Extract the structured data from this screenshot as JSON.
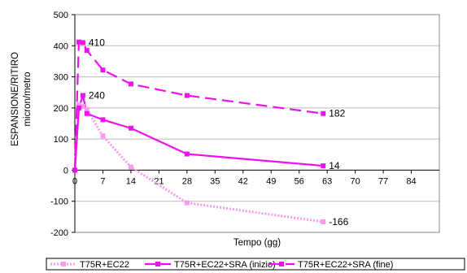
{
  "chart_data": {
    "type": "line",
    "title": "",
    "xlabel": "Tempo (gg)",
    "ylabel": "ESPANSIONE/RITIRO",
    "ylabel_unit": "micron/metro",
    "xlim": [
      0,
      91
    ],
    "ylim": [
      -200,
      500
    ],
    "x_ticks": [
      0,
      7,
      14,
      21,
      28,
      35,
      42,
      49,
      56,
      63,
      70,
      77,
      84
    ],
    "y_ticks": [
      -200,
      -100,
      0,
      100,
      200,
      300,
      400,
      500
    ],
    "grid": "horizontal",
    "legend_position": "bottom",
    "series": [
      {
        "name": "T75R+EC22",
        "color": "#ff99ee",
        "line_style": "dotted",
        "x": [
          0,
          1,
          2,
          3,
          7,
          14,
          28,
          62
        ],
        "y": [
          0,
          210,
          205,
          195,
          110,
          10,
          -105,
          -166
        ]
      },
      {
        "name": "T75R+EC22+SRA (inizio)",
        "color": "#ee11ee",
        "line_style": "solid",
        "x": [
          0,
          1,
          2,
          3,
          7,
          14,
          28,
          62
        ],
        "y": [
          0,
          200,
          240,
          182,
          162,
          135,
          52,
          14
        ]
      },
      {
        "name": "T75R+EC22+SRA (fine)",
        "color": "#ee11ee",
        "line_style": "dashed",
        "x": [
          0,
          1,
          2,
          3,
          7,
          14,
          28,
          62
        ],
        "y": [
          0,
          412,
          410,
          385,
          322,
          277,
          240,
          182
        ]
      }
    ],
    "annotations": [
      {
        "text": "410",
        "x": 2,
        "y": 410
      },
      {
        "text": "240",
        "x": 2,
        "y": 240
      },
      {
        "text": "182",
        "x": 62,
        "y": 182
      },
      {
        "text": "14",
        "x": 62,
        "y": 14
      },
      {
        "text": "-166",
        "x": 62,
        "y": -166
      }
    ]
  }
}
